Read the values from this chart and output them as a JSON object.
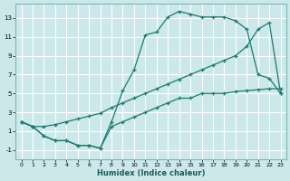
{
  "xlabel": "Humidex (Indice chaleur)",
  "bg_color": "#cce8ea",
  "grid_color": "#ffffff",
  "line_color": "#1a7a6e",
  "xlim": [
    -0.5,
    23.5
  ],
  "ylim": [
    -2,
    14.5
  ],
  "xticks": [
    0,
    1,
    2,
    3,
    4,
    5,
    6,
    7,
    8,
    9,
    10,
    11,
    12,
    13,
    14,
    15,
    16,
    17,
    18,
    19,
    20,
    21,
    22,
    23
  ],
  "yticks": [
    -1,
    1,
    3,
    5,
    7,
    9,
    11,
    13
  ],
  "line_upper_x": [
    0,
    1,
    2,
    3,
    4,
    5,
    6,
    7,
    8,
    9,
    10,
    11,
    12,
    13,
    14,
    15,
    16,
    17,
    18,
    19,
    20,
    21,
    22,
    23
  ],
  "line_upper_y": [
    2.0,
    1.5,
    0.5,
    0.0,
    0.0,
    -0.5,
    -0.5,
    -0.8,
    2.0,
    5.3,
    7.5,
    11.2,
    11.5,
    13.1,
    13.7,
    13.4,
    13.1,
    13.1,
    13.1,
    12.7,
    11.8,
    7.0,
    6.6,
    5.0
  ],
  "line_mid_x": [
    0,
    1,
    2,
    3,
    4,
    5,
    6,
    7,
    8,
    9,
    10,
    11,
    12,
    13,
    14,
    15,
    16,
    17,
    18,
    19,
    20,
    21,
    22,
    23
  ],
  "line_mid_y": [
    2.0,
    1.5,
    1.5,
    1.7,
    2.0,
    2.3,
    2.6,
    2.9,
    3.5,
    4.0,
    4.5,
    5.0,
    5.5,
    6.0,
    6.5,
    7.0,
    7.5,
    8.0,
    8.5,
    9.0,
    10.0,
    11.8,
    12.5,
    5.0
  ],
  "line_lower_x": [
    0,
    1,
    2,
    3,
    4,
    5,
    6,
    7,
    8,
    9,
    10,
    11,
    12,
    13,
    14,
    15,
    16,
    17,
    18,
    19,
    20,
    21,
    22,
    23
  ],
  "line_lower_y": [
    2.0,
    1.5,
    0.5,
    0.0,
    0.0,
    -0.5,
    -0.5,
    -0.8,
    1.5,
    2.0,
    2.5,
    3.0,
    3.5,
    4.0,
    4.5,
    4.5,
    5.0,
    5.0,
    5.0,
    5.2,
    5.3,
    5.4,
    5.5,
    5.5
  ]
}
